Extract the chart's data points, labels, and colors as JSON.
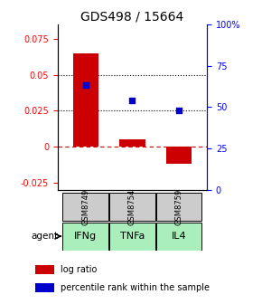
{
  "title": "GDS498 / 15664",
  "categories": [
    "GSM8749",
    "GSM8754",
    "GSM8759"
  ],
  "agents": [
    "IFNg",
    "TNFa",
    "IL4"
  ],
  "log_ratios": [
    0.065,
    0.005,
    -0.012
  ],
  "percentile_ranks": [
    68,
    57,
    50
  ],
  "bar_color": "#cc0000",
  "dot_color": "#0000cc",
  "left_ylim": [
    -0.03,
    0.085
  ],
  "left_yticks": [
    -0.025,
    0,
    0.025,
    0.05,
    0.075
  ],
  "right_yticks_pct": [
    0,
    25,
    50,
    75,
    100
  ],
  "hline_y_left": [
    0.025,
    0.05
  ],
  "sample_box_color": "#cccccc",
  "agent_box_color": "#aaeebb",
  "zero_dash_color": "#cc0000",
  "title_fontsize": 10,
  "tick_fontsize": 7,
  "legend_fontsize": 7,
  "cat_fontsize": 6,
  "agent_fontsize": 8
}
